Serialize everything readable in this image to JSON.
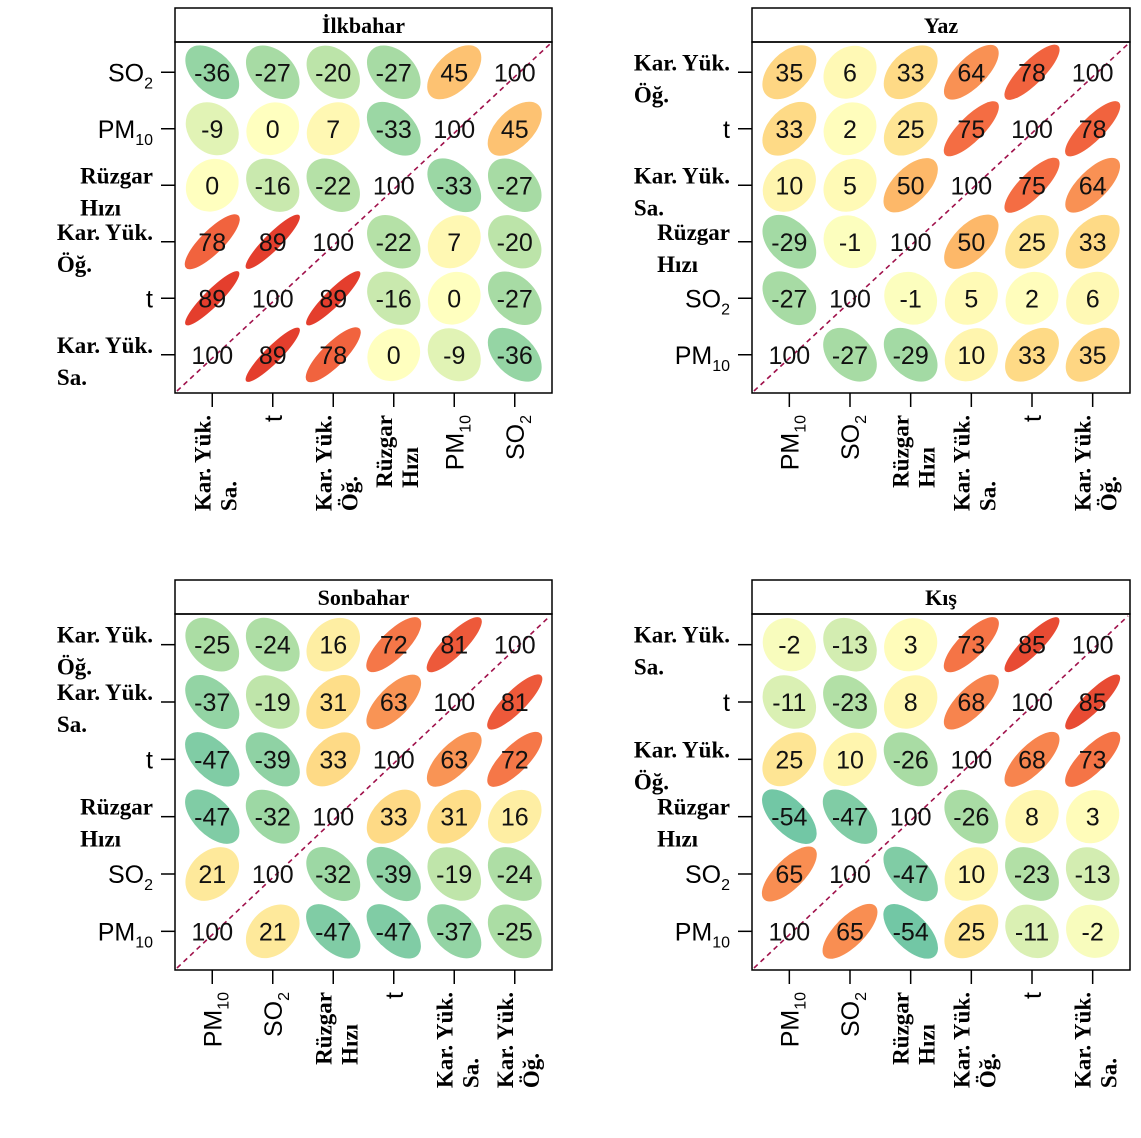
{
  "colors": {
    "scale_negative": "#66c2a5",
    "scale_zero": "#ffffbf",
    "scale_positive": "#d7191c",
    "diagonal": "#a0114b",
    "frame": "#000000",
    "title_strip": "#ffffff"
  },
  "chart_data": [
    {
      "type": "heatmap",
      "title": "İlkbahar",
      "rows": [
        [
          "SO",
          "2"
        ],
        [
          "PM",
          "10"
        ],
        [
          "Rüzgar",
          "Hızı"
        ],
        [
          "Kar. Yük.",
          "Öğ."
        ],
        [
          "t"
        ],
        [
          "Kar. Yük.",
          "Sa."
        ]
      ],
      "cols": [
        [
          "Kar. Yük.",
          "Sa."
        ],
        [
          "t"
        ],
        [
          "Kar. Yük.",
          "Öğ."
        ],
        [
          "Rüzgar",
          "Hızı"
        ],
        [
          "PM",
          "10"
        ],
        [
          "SO",
          "2"
        ]
      ],
      "values": [
        [
          -36,
          -27,
          -20,
          -27,
          45,
          100
        ],
        [
          -9,
          0,
          7,
          -33,
          100,
          45
        ],
        [
          0,
          -16,
          -22,
          100,
          -33,
          -27
        ],
        [
          78,
          89,
          100,
          -22,
          7,
          -20
        ],
        [
          89,
          100,
          89,
          -16,
          0,
          -27
        ],
        [
          100,
          89,
          78,
          0,
          -9,
          -36
        ]
      ]
    },
    {
      "type": "heatmap",
      "title": "Yaz",
      "rows": [
        [
          "Kar. Yük.",
          "Öğ."
        ],
        [
          "t"
        ],
        [
          "Kar. Yük.",
          "Sa."
        ],
        [
          "Rüzgar",
          "Hızı"
        ],
        [
          "SO",
          "2"
        ],
        [
          "PM",
          "10"
        ]
      ],
      "cols": [
        [
          "PM",
          "10"
        ],
        [
          "SO",
          "2"
        ],
        [
          "Rüzgar",
          "Hızı"
        ],
        [
          "Kar. Yük.",
          "Sa."
        ],
        [
          "t"
        ],
        [
          "Kar. Yük.",
          "Öğ."
        ]
      ],
      "values": [
        [
          35,
          6,
          33,
          64,
          78,
          100
        ],
        [
          33,
          2,
          25,
          75,
          100,
          78
        ],
        [
          10,
          5,
          50,
          100,
          75,
          64
        ],
        [
          -29,
          -1,
          100,
          50,
          25,
          33
        ],
        [
          -27,
          100,
          -1,
          5,
          2,
          6
        ],
        [
          100,
          -27,
          -29,
          10,
          33,
          35
        ]
      ]
    },
    {
      "type": "heatmap",
      "title": "Sonbahar",
      "rows": [
        [
          "Kar. Yük.",
          "Öğ."
        ],
        [
          "Kar. Yük.",
          "Sa."
        ],
        [
          "t"
        ],
        [
          "Rüzgar",
          "Hızı"
        ],
        [
          "SO",
          "2"
        ],
        [
          "PM",
          "10"
        ]
      ],
      "cols": [
        [
          "PM",
          "10"
        ],
        [
          "SO",
          "2"
        ],
        [
          "Rüzgar",
          "Hızı"
        ],
        [
          "t"
        ],
        [
          "Kar. Yük.",
          "Sa."
        ],
        [
          "Kar. Yük.",
          "Öğ."
        ]
      ],
      "values": [
        [
          -25,
          -24,
          16,
          72,
          81,
          100
        ],
        [
          -37,
          -19,
          31,
          63,
          100,
          81
        ],
        [
          -47,
          -39,
          33,
          100,
          63,
          72
        ],
        [
          -47,
          -32,
          100,
          33,
          31,
          16
        ],
        [
          21,
          100,
          -32,
          -39,
          -19,
          -24
        ],
        [
          100,
          21,
          -47,
          -47,
          -37,
          -25
        ]
      ]
    },
    {
      "type": "heatmap",
      "title": "Kış",
      "rows": [
        [
          "Kar. Yük.",
          "Sa."
        ],
        [
          "t"
        ],
        [
          "Kar. Yük.",
          "Öğ."
        ],
        [
          "Rüzgar",
          "Hızı"
        ],
        [
          "SO",
          "2"
        ],
        [
          "PM",
          "10"
        ]
      ],
      "cols": [
        [
          "PM",
          "10"
        ],
        [
          "SO",
          "2"
        ],
        [
          "Rüzgar",
          "Hızı"
        ],
        [
          "Kar. Yük.",
          "Öğ."
        ],
        [
          "t"
        ],
        [
          "Kar. Yük.",
          "Sa."
        ]
      ],
      "values": [
        [
          -2,
          -13,
          3,
          73,
          85,
          100
        ],
        [
          -11,
          -23,
          8,
          68,
          100,
          85
        ],
        [
          25,
          10,
          -26,
          100,
          68,
          73
        ],
        [
          -54,
          -47,
          100,
          -26,
          8,
          3
        ],
        [
          65,
          100,
          -47,
          10,
          -23,
          -13
        ],
        [
          100,
          65,
          -54,
          25,
          -11,
          -2
        ]
      ]
    }
  ]
}
